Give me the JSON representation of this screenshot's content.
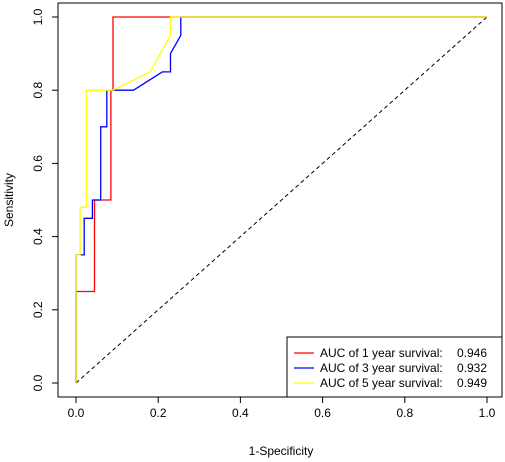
{
  "chart_data": {
    "type": "line",
    "title": "",
    "xlabel": "1-Specificity",
    "ylabel": "Sensitivity",
    "xlim": [
      0.0,
      1.0
    ],
    "ylim": [
      0.0,
      1.0
    ],
    "x_ticks": [
      "0.0",
      "0.2",
      "0.4",
      "0.6",
      "0.8",
      "1.0"
    ],
    "y_ticks": [
      "0.0",
      "0.2",
      "0.4",
      "0.6",
      "0.8",
      "1.0"
    ],
    "legend_position": "bottom-right",
    "reference_line": {
      "style": "dashed",
      "from": [
        0,
        0
      ],
      "to": [
        1,
        1
      ],
      "color": "#000000"
    },
    "series": [
      {
        "name": "AUC of 1 year survival:",
        "auc": "0.946",
        "color": "#ff0000",
        "x": [
          0.0,
          0.0,
          0.045,
          0.045,
          0.085,
          0.085,
          0.09,
          0.09,
          0.24,
          1.0
        ],
        "y": [
          0.0,
          0.25,
          0.25,
          0.5,
          0.5,
          0.8,
          0.8,
          1.0,
          1.0,
          1.0
        ]
      },
      {
        "name": "AUC of 3 year survival:",
        "auc": "0.932",
        "color": "#0000ff",
        "x": [
          0.0,
          0.0,
          0.02,
          0.02,
          0.04,
          0.04,
          0.06,
          0.06,
          0.075,
          0.075,
          0.09,
          0.09,
          0.14,
          0.21,
          0.23,
          0.23,
          0.255,
          0.255,
          1.0
        ],
        "y": [
          0.0,
          0.35,
          0.35,
          0.45,
          0.45,
          0.5,
          0.5,
          0.7,
          0.7,
          0.8,
          0.8,
          0.8,
          0.8,
          0.85,
          0.85,
          0.9,
          0.95,
          1.0,
          1.0
        ]
      },
      {
        "name": "AUC of 5 year survival:",
        "auc": "0.949",
        "color": "#ffff00",
        "x": [
          0.0,
          0.0,
          0.01,
          0.01,
          0.025,
          0.025,
          0.09,
          0.18,
          0.23,
          0.23,
          1.0
        ],
        "y": [
          0.0,
          0.35,
          0.35,
          0.48,
          0.48,
          0.8,
          0.8,
          0.85,
          0.95,
          1.0,
          1.0
        ]
      }
    ]
  }
}
